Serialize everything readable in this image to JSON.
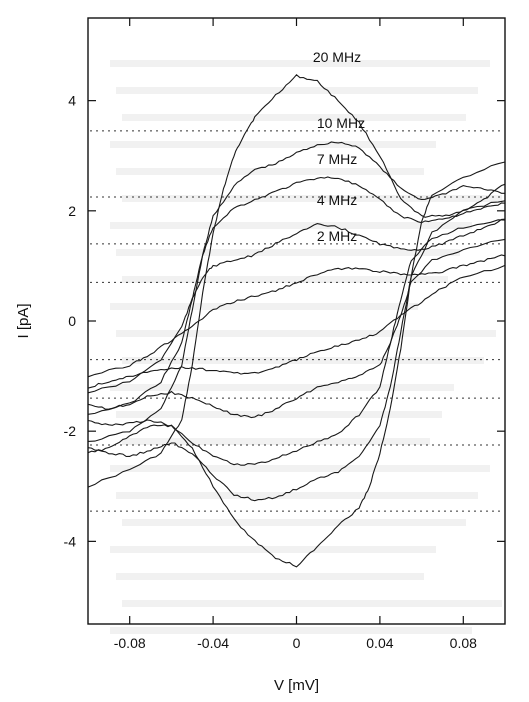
{
  "chart_data": {
    "type": "line",
    "title": "",
    "xlabel": "V [mV]",
    "ylabel": "I [pA]",
    "xlim": [
      -0.1,
      0.1
    ],
    "ylim": [
      -5.5,
      5.5
    ],
    "x_ticks": [
      -0.08,
      -0.04,
      0,
      0.04,
      0.08
    ],
    "x_tick_labels": [
      "-0.08",
      "-0.04",
      "0",
      "0.04",
      "0.08"
    ],
    "y_ticks": [
      -4,
      -2,
      0,
      2,
      4
    ],
    "y_tick_labels": [
      "-4",
      "-2",
      "0",
      "2",
      "4"
    ],
    "grid": false,
    "dotted_reference_levels": [
      3.45,
      2.25,
      1.4,
      0.7,
      -0.7,
      -1.4,
      -2.25,
      -3.45
    ],
    "series": [
      {
        "name": "20 MHz",
        "upper_branch": [
          [
            -0.1,
            -3.0
          ],
          [
            -0.08,
            -2.7
          ],
          [
            -0.065,
            -2.4
          ],
          [
            -0.055,
            -1.8
          ],
          [
            -0.05,
            -0.8
          ],
          [
            -0.045,
            0.5
          ],
          [
            -0.04,
            1.6
          ],
          [
            -0.035,
            2.4
          ],
          [
            -0.03,
            3.0
          ],
          [
            -0.025,
            3.4
          ],
          [
            -0.02,
            3.7
          ],
          [
            -0.01,
            4.1
          ],
          [
            0.0,
            4.45
          ],
          [
            0.01,
            4.35
          ],
          [
            0.02,
            4.0
          ],
          [
            0.03,
            3.6
          ],
          [
            0.04,
            3.0
          ],
          [
            0.05,
            2.2
          ],
          [
            0.06,
            1.9
          ],
          [
            0.07,
            1.9
          ],
          [
            0.08,
            2.0
          ],
          [
            0.09,
            2.2
          ],
          [
            0.1,
            2.5
          ]
        ],
        "lower_branch": [
          [
            -0.1,
            -2.4
          ],
          [
            -0.09,
            -2.3
          ],
          [
            -0.08,
            -2.1
          ],
          [
            -0.07,
            -1.9
          ],
          [
            -0.06,
            -1.9
          ],
          [
            -0.05,
            -2.3
          ],
          [
            -0.04,
            -3.0
          ],
          [
            -0.03,
            -3.6
          ],
          [
            -0.02,
            -4.0
          ],
          [
            -0.01,
            -4.3
          ],
          [
            0.0,
            -4.45
          ],
          [
            0.01,
            -4.1
          ],
          [
            0.02,
            -3.7
          ],
          [
            0.03,
            -3.4
          ],
          [
            0.035,
            -3.0
          ],
          [
            0.04,
            -2.4
          ],
          [
            0.045,
            -1.6
          ],
          [
            0.05,
            -0.5
          ],
          [
            0.055,
            0.8
          ],
          [
            0.06,
            1.8
          ],
          [
            0.065,
            2.3
          ],
          [
            0.08,
            2.6
          ],
          [
            0.1,
            2.9
          ]
        ]
      },
      {
        "name": "10 MHz",
        "upper_branch": [
          [
            -0.1,
            -2.2
          ],
          [
            -0.08,
            -2.0
          ],
          [
            -0.065,
            -1.6
          ],
          [
            -0.055,
            -0.8
          ],
          [
            -0.05,
            0.2
          ],
          [
            -0.045,
            1.2
          ],
          [
            -0.04,
            1.9
          ],
          [
            -0.03,
            2.45
          ],
          [
            -0.02,
            2.75
          ],
          [
            -0.01,
            2.85
          ],
          [
            0.0,
            3.05
          ],
          [
            0.01,
            3.2
          ],
          [
            0.02,
            3.25
          ],
          [
            0.03,
            3.15
          ],
          [
            0.04,
            2.8
          ],
          [
            0.05,
            2.4
          ],
          [
            0.06,
            2.2
          ],
          [
            0.07,
            2.3
          ],
          [
            0.08,
            2.45
          ],
          [
            0.09,
            2.4
          ],
          [
            0.1,
            2.3
          ]
        ],
        "lower_branch": [
          [
            -0.1,
            -2.3
          ],
          [
            -0.09,
            -2.4
          ],
          [
            -0.08,
            -2.45
          ],
          [
            -0.07,
            -2.35
          ],
          [
            -0.06,
            -2.2
          ],
          [
            -0.05,
            -2.4
          ],
          [
            -0.04,
            -2.8
          ],
          [
            -0.03,
            -3.15
          ],
          [
            -0.02,
            -3.25
          ],
          [
            -0.01,
            -3.2
          ],
          [
            0.0,
            -3.05
          ],
          [
            0.01,
            -2.85
          ],
          [
            0.02,
            -2.75
          ],
          [
            0.03,
            -2.45
          ],
          [
            0.04,
            -1.9
          ],
          [
            0.045,
            -1.2
          ],
          [
            0.05,
            -0.2
          ],
          [
            0.055,
            0.8
          ],
          [
            0.065,
            1.6
          ],
          [
            0.08,
            2.0
          ],
          [
            0.1,
            2.2
          ]
        ]
      },
      {
        "name": "7 MHz",
        "upper_branch": [
          [
            -0.1,
            -1.7
          ],
          [
            -0.08,
            -1.5
          ],
          [
            -0.065,
            -1.1
          ],
          [
            -0.055,
            -0.4
          ],
          [
            -0.05,
            0.4
          ],
          [
            -0.045,
            1.2
          ],
          [
            -0.04,
            1.7
          ],
          [
            -0.03,
            2.05
          ],
          [
            -0.02,
            2.2
          ],
          [
            -0.01,
            2.35
          ],
          [
            0.0,
            2.5
          ],
          [
            0.01,
            2.6
          ],
          [
            0.02,
            2.6
          ],
          [
            0.03,
            2.45
          ],
          [
            0.04,
            2.2
          ],
          [
            0.05,
            1.9
          ],
          [
            0.06,
            1.8
          ],
          [
            0.07,
            1.85
          ],
          [
            0.08,
            1.95
          ],
          [
            0.09,
            2.05
          ],
          [
            0.1,
            2.15
          ]
        ],
        "lower_branch": [
          [
            -0.1,
            -1.8
          ],
          [
            -0.09,
            -1.9
          ],
          [
            -0.08,
            -1.85
          ],
          [
            -0.07,
            -1.8
          ],
          [
            -0.06,
            -1.9
          ],
          [
            -0.05,
            -2.2
          ],
          [
            -0.04,
            -2.45
          ],
          [
            -0.03,
            -2.6
          ],
          [
            -0.02,
            -2.6
          ],
          [
            -0.01,
            -2.5
          ],
          [
            0.0,
            -2.35
          ],
          [
            0.01,
            -2.2
          ],
          [
            0.02,
            -2.05
          ],
          [
            0.03,
            -1.7
          ],
          [
            0.04,
            -1.2
          ],
          [
            0.045,
            -0.4
          ],
          [
            0.05,
            0.4
          ],
          [
            0.055,
            1.1
          ],
          [
            0.065,
            1.5
          ],
          [
            0.08,
            1.7
          ],
          [
            0.1,
            1.85
          ]
        ]
      },
      {
        "name": "4 MHz",
        "upper_branch": [
          [
            -0.1,
            -1.3
          ],
          [
            -0.08,
            -1.1
          ],
          [
            -0.065,
            -0.7
          ],
          [
            -0.055,
            -0.1
          ],
          [
            -0.05,
            0.4
          ],
          [
            -0.045,
            0.8
          ],
          [
            -0.04,
            1.0
          ],
          [
            -0.03,
            1.1
          ],
          [
            -0.02,
            1.2
          ],
          [
            -0.01,
            1.4
          ],
          [
            0.0,
            1.6
          ],
          [
            0.01,
            1.75
          ],
          [
            0.02,
            1.7
          ],
          [
            0.03,
            1.55
          ],
          [
            0.04,
            1.4
          ],
          [
            0.05,
            1.3
          ],
          [
            0.06,
            1.3
          ],
          [
            0.07,
            1.4
          ],
          [
            0.08,
            1.55
          ],
          [
            0.09,
            1.7
          ],
          [
            0.1,
            1.85
          ]
        ],
        "lower_branch": [
          [
            -0.1,
            -1.5
          ],
          [
            -0.09,
            -1.6
          ],
          [
            -0.08,
            -1.5
          ],
          [
            -0.07,
            -1.35
          ],
          [
            -0.06,
            -1.3
          ],
          [
            -0.05,
            -1.4
          ],
          [
            -0.04,
            -1.55
          ],
          [
            -0.03,
            -1.7
          ],
          [
            -0.02,
            -1.75
          ],
          [
            -0.01,
            -1.6
          ],
          [
            0.0,
            -1.4
          ],
          [
            0.01,
            -1.2
          ],
          [
            0.02,
            -1.1
          ],
          [
            0.03,
            -1.0
          ],
          [
            0.04,
            -0.8
          ],
          [
            0.045,
            -0.4
          ],
          [
            0.05,
            0.1
          ],
          [
            0.055,
            0.7
          ],
          [
            0.065,
            1.1
          ],
          [
            0.08,
            1.3
          ],
          [
            0.1,
            1.5
          ]
        ]
      },
      {
        "name": "2 MHz",
        "upper_branch": [
          [
            -0.1,
            -1.0
          ],
          [
            -0.08,
            -0.8
          ],
          [
            -0.07,
            -0.6
          ],
          [
            -0.06,
            -0.35
          ],
          [
            -0.05,
            -0.1
          ],
          [
            -0.04,
            0.2
          ],
          [
            -0.03,
            0.35
          ],
          [
            -0.02,
            0.45
          ],
          [
            -0.01,
            0.55
          ],
          [
            0.0,
            0.7
          ],
          [
            0.01,
            0.85
          ],
          [
            0.02,
            0.95
          ],
          [
            0.03,
            0.95
          ],
          [
            0.04,
            0.9
          ],
          [
            0.05,
            0.85
          ],
          [
            0.06,
            0.85
          ],
          [
            0.07,
            0.9
          ],
          [
            0.08,
            1.0
          ],
          [
            0.09,
            1.1
          ],
          [
            0.1,
            1.2
          ]
        ],
        "lower_branch": [
          [
            -0.1,
            -1.2
          ],
          [
            -0.09,
            -1.1
          ],
          [
            -0.08,
            -1.0
          ],
          [
            -0.07,
            -0.9
          ],
          [
            -0.06,
            -0.85
          ],
          [
            -0.05,
            -0.85
          ],
          [
            -0.04,
            -0.9
          ],
          [
            -0.03,
            -0.95
          ],
          [
            -0.02,
            -0.95
          ],
          [
            -0.01,
            -0.85
          ],
          [
            0.0,
            -0.7
          ],
          [
            0.01,
            -0.55
          ],
          [
            0.02,
            -0.45
          ],
          [
            0.03,
            -0.35
          ],
          [
            0.04,
            -0.2
          ],
          [
            0.05,
            0.1
          ],
          [
            0.06,
            0.35
          ],
          [
            0.07,
            0.6
          ],
          [
            0.08,
            0.8
          ],
          [
            0.1,
            1.0
          ]
        ]
      }
    ]
  }
}
